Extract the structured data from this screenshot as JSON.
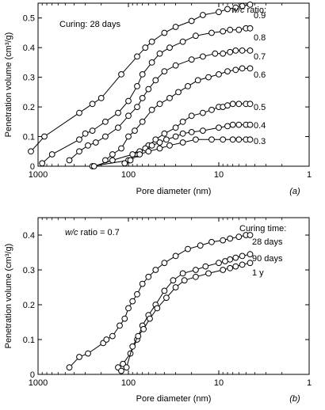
{
  "chart_data": [
    {
      "type": "line",
      "panel_label": "(a)",
      "annotation": "Curing: 28 days",
      "legend_title_italic": "w/c",
      "legend_title_rest": " ratio:",
      "xlabel": "Pore diameter (nm)",
      "ylabel": "Penetration volume (cm³/g)",
      "x_scale": "log",
      "x_reversed": true,
      "xlim": [
        1000,
        1
      ],
      "ylim": [
        0,
        0.55
      ],
      "x_ticks": [
        1000,
        100,
        10,
        1
      ],
      "x_tick_labels": [
        "1000",
        "100",
        "10",
        "1"
      ],
      "y_ticks": [
        0,
        0.1,
        0.2,
        0.3,
        0.4,
        0.5
      ],
      "y_tick_labels": [
        "0",
        "0.1",
        "0.2",
        "0.3",
        "0.4",
        "0.5"
      ],
      "grid": false,
      "series": [
        {
          "name": "0.9",
          "points": [
            [
              1200,
              0.05
            ],
            [
              850,
              0.1
            ],
            [
              350,
              0.18
            ],
            [
              250,
              0.21
            ],
            [
              200,
              0.23
            ],
            [
              120,
              0.31
            ],
            [
              80,
              0.37
            ],
            [
              65,
              0.4
            ],
            [
              55,
              0.42
            ],
            [
              40,
              0.45
            ],
            [
              30,
              0.47
            ],
            [
              20,
              0.49
            ],
            [
              15,
              0.51
            ],
            [
              10,
              0.52
            ],
            [
              8,
              0.53
            ],
            [
              6.5,
              0.535
            ],
            [
              5.5,
              0.54
            ],
            [
              4.5,
              0.545
            ]
          ]
        },
        {
          "name": "0.8",
          "points": [
            [
              900,
              0.01
            ],
            [
              700,
              0.04
            ],
            [
              350,
              0.09
            ],
            [
              300,
              0.11
            ],
            [
              250,
              0.12
            ],
            [
              180,
              0.15
            ],
            [
              130,
              0.18
            ],
            [
              100,
              0.22
            ],
            [
              80,
              0.27
            ],
            [
              70,
              0.31
            ],
            [
              55,
              0.35
            ],
            [
              45,
              0.38
            ],
            [
              35,
              0.4
            ],
            [
              25,
              0.42
            ],
            [
              18,
              0.44
            ],
            [
              12,
              0.45
            ],
            [
              9,
              0.455
            ],
            [
              7.5,
              0.46
            ],
            [
              6,
              0.46
            ],
            [
              5,
              0.465
            ],
            [
              4.5,
              0.465
            ]
          ]
        },
        {
          "name": "0.7",
          "points": [
            [
              450,
              0.02
            ],
            [
              350,
              0.05
            ],
            [
              280,
              0.07
            ],
            [
              230,
              0.08
            ],
            [
              180,
              0.1
            ],
            [
              130,
              0.13
            ],
            [
              100,
              0.17
            ],
            [
              80,
              0.2
            ],
            [
              70,
              0.23
            ],
            [
              60,
              0.26
            ],
            [
              50,
              0.29
            ],
            [
              40,
              0.32
            ],
            [
              30,
              0.34
            ],
            [
              20,
              0.36
            ],
            [
              15,
              0.37
            ],
            [
              11,
              0.38
            ],
            [
              9,
              0.38
            ],
            [
              7.5,
              0.385
            ],
            [
              6.5,
              0.39
            ],
            [
              5.5,
              0.39
            ],
            [
              4.5,
              0.39
            ]
          ]
        },
        {
          "name": "0.6",
          "points": [
            [
              180,
              0.02
            ],
            [
              150,
              0.04
            ],
            [
              120,
              0.06
            ],
            [
              100,
              0.1
            ],
            [
              85,
              0.12
            ],
            [
              70,
              0.15
            ],
            [
              55,
              0.19
            ],
            [
              45,
              0.21
            ],
            [
              35,
              0.23
            ],
            [
              28,
              0.25
            ],
            [
              22,
              0.27
            ],
            [
              17,
              0.29
            ],
            [
              13,
              0.3
            ],
            [
              10,
              0.31
            ],
            [
              8,
              0.32
            ],
            [
              6.5,
              0.325
            ],
            [
              5.5,
              0.33
            ],
            [
              4.5,
              0.33
            ]
          ]
        },
        {
          "name": "0.5",
          "points": [
            [
              250,
              0.0
            ],
            [
              100,
              0.02
            ],
            [
              80,
              0.04
            ],
            [
              60,
              0.07
            ],
            [
              50,
              0.09
            ],
            [
              40,
              0.11
            ],
            [
              30,
              0.13
            ],
            [
              25,
              0.15
            ],
            [
              20,
              0.17
            ],
            [
              15,
              0.18
            ],
            [
              12,
              0.19
            ],
            [
              10,
              0.2
            ],
            [
              9,
              0.2
            ],
            [
              8,
              0.205
            ],
            [
              7,
              0.21
            ],
            [
              6,
              0.21
            ],
            [
              5,
              0.21
            ],
            [
              4.5,
              0.21
            ]
          ]
        },
        {
          "name": "0.4",
          "points": [
            [
              240,
              0.0
            ],
            [
              150,
              0.02
            ],
            [
              90,
              0.04
            ],
            [
              75,
              0.05
            ],
            [
              65,
              0.06
            ],
            [
              55,
              0.07
            ],
            [
              45,
              0.08
            ],
            [
              38,
              0.09
            ],
            [
              30,
              0.1
            ],
            [
              25,
              0.11
            ],
            [
              20,
              0.115
            ],
            [
              15,
              0.12
            ],
            [
              10,
              0.13
            ],
            [
              8,
              0.135
            ],
            [
              7,
              0.14
            ],
            [
              6,
              0.14
            ],
            [
              5,
              0.14
            ],
            [
              4.5,
              0.14
            ]
          ]
        },
        {
          "name": "0.3",
          "points": [
            [
              110,
              0.01
            ],
            [
              95,
              0.02
            ],
            [
              75,
              0.04
            ],
            [
              60,
              0.05
            ],
            [
              45,
              0.06
            ],
            [
              35,
              0.07
            ],
            [
              25,
              0.08
            ],
            [
              18,
              0.09
            ],
            [
              12,
              0.09
            ],
            [
              9,
              0.09
            ],
            [
              7,
              0.09
            ],
            [
              6,
              0.09
            ],
            [
              5,
              0.09
            ],
            [
              4.5,
              0.09
            ]
          ]
        }
      ]
    },
    {
      "type": "line",
      "panel_label": "(b)",
      "annotation_italic": "w/c",
      "annotation_rest": " ratio = 0.7",
      "legend_title": "Curing time:",
      "xlabel": "Pore diameter (nm)",
      "ylabel": "Penetration volume (cm³/g)",
      "x_scale": "log",
      "x_reversed": true,
      "xlim": [
        1000,
        1
      ],
      "ylim": [
        0,
        0.45
      ],
      "x_ticks": [
        1000,
        100,
        10,
        1
      ],
      "x_tick_labels": [
        "1000",
        "100",
        "10",
        "1"
      ],
      "y_ticks": [
        0,
        0.1,
        0.2,
        0.3,
        0.4
      ],
      "y_tick_labels": [
        "0",
        "0.1",
        "0.2",
        "0.3",
        "0.4"
      ],
      "grid": false,
      "series": [
        {
          "name": "28 days",
          "points": [
            [
              450,
              0.02
            ],
            [
              350,
              0.05
            ],
            [
              280,
              0.06
            ],
            [
              190,
              0.09
            ],
            [
              175,
              0.1
            ],
            [
              150,
              0.11
            ],
            [
              125,
              0.14
            ],
            [
              110,
              0.16
            ],
            [
              100,
              0.19
            ],
            [
              90,
              0.21
            ],
            [
              80,
              0.23
            ],
            [
              70,
              0.26
            ],
            [
              60,
              0.28
            ],
            [
              50,
              0.3
            ],
            [
              40,
              0.32
            ],
            [
              30,
              0.34
            ],
            [
              22,
              0.36
            ],
            [
              16,
              0.37
            ],
            [
              12,
              0.38
            ],
            [
              9,
              0.385
            ],
            [
              7.5,
              0.39
            ],
            [
              6,
              0.395
            ],
            [
              5,
              0.4
            ],
            [
              4.5,
              0.4
            ]
          ]
        },
        {
          "name": "90 days",
          "points": [
            [
              130,
              0.02
            ],
            [
              115,
              0.03
            ],
            [
              95,
              0.06
            ],
            [
              80,
              0.1
            ],
            [
              70,
              0.14
            ],
            [
              60,
              0.17
            ],
            [
              50,
              0.2
            ],
            [
              40,
              0.24
            ],
            [
              32,
              0.27
            ],
            [
              25,
              0.29
            ],
            [
              18,
              0.3
            ],
            [
              14,
              0.31
            ],
            [
              10,
              0.32
            ],
            [
              8.5,
              0.325
            ],
            [
              7.5,
              0.33
            ],
            [
              6.5,
              0.335
            ],
            [
              5.5,
              0.34
            ],
            [
              4.5,
              0.345
            ]
          ]
        },
        {
          "name": "1 y",
          "points": [
            [
              120,
              0.01
            ],
            [
              105,
              0.02
            ],
            [
              90,
              0.08
            ],
            [
              78,
              0.11
            ],
            [
              68,
              0.13
            ],
            [
              58,
              0.16
            ],
            [
              48,
              0.19
            ],
            [
              38,
              0.22
            ],
            [
              30,
              0.25
            ],
            [
              24,
              0.27
            ],
            [
              18,
              0.28
            ],
            [
              13,
              0.29
            ],
            [
              9,
              0.3
            ],
            [
              7.5,
              0.305
            ],
            [
              6.5,
              0.31
            ],
            [
              5.5,
              0.315
            ],
            [
              4.5,
              0.32
            ]
          ]
        }
      ],
      "series_label_positions": [
        "28 days",
        "90 days",
        "1 y"
      ]
    }
  ]
}
